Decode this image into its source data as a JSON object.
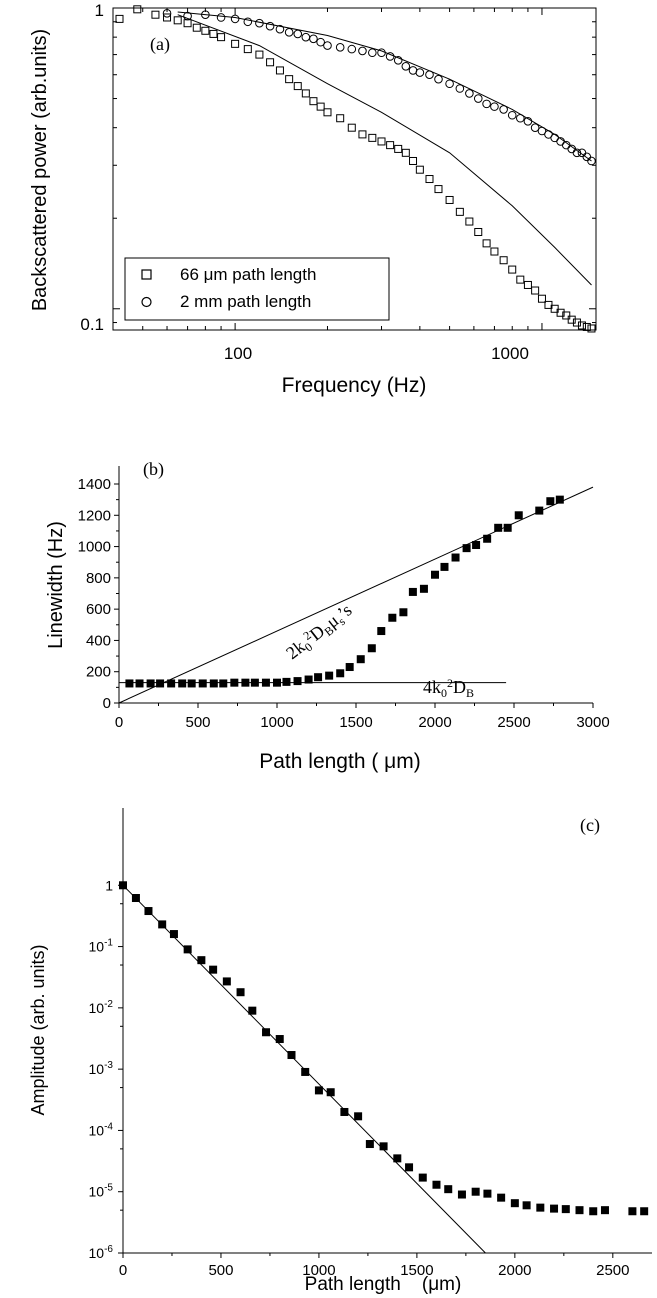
{
  "chart_data": [
    {
      "id": "a",
      "type": "scatter",
      "panel_label": "(a)",
      "xlabel": "Frequency (Hz)",
      "ylabel": "Backscattered power (arb.units)",
      "xscale": "log",
      "yscale": "log",
      "xlim": [
        40,
        1500
      ],
      "ylim": [
        0.085,
        1.0
      ],
      "x_tick_labels": [
        "100",
        "1000"
      ],
      "y_tick_labels": [
        "1",
        "0.1"
      ],
      "legend": {
        "placement": "bottom-left",
        "entries": [
          "66 μm path length",
          "2 mm path length"
        ]
      },
      "series": [
        {
          "name": "66 μm path length",
          "marker": "open-square",
          "x": [
            42,
            48,
            55,
            60,
            65,
            70,
            75,
            80,
            85,
            90,
            100,
            110,
            120,
            130,
            140,
            150,
            160,
            170,
            180,
            190,
            200,
            220,
            240,
            260,
            280,
            300,
            320,
            340,
            360,
            380,
            400,
            430,
            460,
            500,
            540,
            580,
            620,
            660,
            700,
            750,
            800,
            850,
            900,
            950,
            1000,
            1050,
            1100,
            1150,
            1200,
            1250,
            1300,
            1350,
            1400,
            1450
          ],
          "y": [
            0.92,
            0.99,
            0.95,
            0.93,
            0.91,
            0.89,
            0.86,
            0.84,
            0.82,
            0.8,
            0.76,
            0.73,
            0.7,
            0.66,
            0.62,
            0.58,
            0.55,
            0.52,
            0.49,
            0.47,
            0.45,
            0.43,
            0.4,
            0.38,
            0.37,
            0.36,
            0.35,
            0.34,
            0.33,
            0.31,
            0.29,
            0.27,
            0.25,
            0.23,
            0.21,
            0.195,
            0.18,
            0.165,
            0.155,
            0.145,
            0.135,
            0.125,
            0.12,
            0.115,
            0.108,
            0.103,
            0.1,
            0.097,
            0.095,
            0.092,
            0.09,
            0.088,
            0.087,
            0.086
          ]
        },
        {
          "name": "2 mm path length",
          "marker": "open-circle",
          "x": [
            60,
            70,
            80,
            90,
            100,
            110,
            120,
            130,
            140,
            150,
            160,
            170,
            180,
            190,
            200,
            220,
            240,
            260,
            280,
            300,
            320,
            340,
            360,
            380,
            400,
            430,
            460,
            500,
            540,
            580,
            620,
            660,
            700,
            750,
            800,
            850,
            900,
            950,
            1000,
            1050,
            1100,
            1150,
            1200,
            1250,
            1300,
            1350,
            1400,
            1450
          ],
          "y": [
            0.96,
            0.94,
            0.95,
            0.93,
            0.92,
            0.9,
            0.89,
            0.87,
            0.85,
            0.83,
            0.82,
            0.8,
            0.79,
            0.77,
            0.75,
            0.74,
            0.73,
            0.72,
            0.71,
            0.71,
            0.69,
            0.67,
            0.64,
            0.62,
            0.61,
            0.6,
            0.58,
            0.56,
            0.54,
            0.52,
            0.5,
            0.48,
            0.47,
            0.46,
            0.44,
            0.43,
            0.42,
            0.4,
            0.39,
            0.38,
            0.37,
            0.36,
            0.35,
            0.34,
            0.33,
            0.33,
            0.32,
            0.31
          ]
        }
      ],
      "fit_lines": [
        {
          "x": [
            65,
            120,
            200,
            300,
            500,
            800,
            1100,
            1450
          ],
          "y": [
            0.95,
            0.75,
            0.56,
            0.45,
            0.33,
            0.22,
            0.16,
            0.12
          ]
        },
        {
          "x": [
            65,
            100,
            200,
            300,
            500,
            800,
            1100,
            1450
          ],
          "y": [
            0.97,
            0.93,
            0.81,
            0.72,
            0.58,
            0.46,
            0.38,
            0.31
          ]
        }
      ]
    },
    {
      "id": "b",
      "type": "scatter",
      "panel_label": "(b)",
      "xlabel": "Path length ( μm)",
      "ylabel": "Linewidth (Hz)",
      "xlim": [
        0,
        3000
      ],
      "ylim": [
        0,
        1400
      ],
      "x_ticks": [
        0,
        500,
        1000,
        1500,
        2000,
        2500,
        3000
      ],
      "y_ticks": [
        0,
        200,
        400,
        600,
        800,
        1000,
        1200,
        1400
      ],
      "series": [
        {
          "marker": "filled-square",
          "x": [
            66,
            130,
            200,
            260,
            330,
            400,
            460,
            530,
            600,
            660,
            730,
            800,
            860,
            930,
            1000,
            1060,
            1130,
            1200,
            1260,
            1330,
            1400,
            1460,
            1530,
            1600,
            1660,
            1730,
            1800,
            1860,
            1930,
            2000,
            2060,
            2130,
            2200,
            2260,
            2330,
            2400,
            2460,
            2530,
            2660,
            2730,
            2790
          ],
          "y": [
            125,
            125,
            125,
            125,
            125,
            125,
            125,
            125,
            125,
            125,
            130,
            130,
            130,
            130,
            130,
            135,
            140,
            150,
            165,
            175,
            190,
            230,
            280,
            350,
            460,
            545,
            580,
            710,
            730,
            820,
            870,
            930,
            990,
            1010,
            1050,
            1120,
            1120,
            1200,
            1230,
            1290,
            1300
          ]
        }
      ],
      "lines": [
        {
          "label": "2k0²DBμ's",
          "x": [
            0,
            3000
          ],
          "y": [
            0,
            1380
          ]
        },
        {
          "label": "4k0²DB",
          "x": [
            0,
            2450
          ],
          "y": [
            130,
            130
          ]
        }
      ],
      "annotations": [
        "2k0²DBμ's",
        "4k0²DB"
      ]
    },
    {
      "id": "c",
      "type": "scatter",
      "panel_label": "(c)",
      "xlabel": "Path length    (μm)",
      "ylabel": "Amplitude (arb. units)",
      "yscale": "log",
      "xlim": [
        0,
        2700
      ],
      "ylim": [
        1e-06,
        10
      ],
      "x_ticks": [
        0,
        500,
        1000,
        1500,
        2000,
        2500
      ],
      "y_ticks": [
        1,
        -1,
        -2,
        -3,
        -4,
        -5,
        -6
      ],
      "series": [
        {
          "marker": "filled-square",
          "x": [
            0,
            66,
            130,
            200,
            260,
            330,
            400,
            460,
            530,
            600,
            660,
            730,
            800,
            860,
            930,
            1000,
            1060,
            1130,
            1200,
            1260,
            1330,
            1400,
            1460,
            1530,
            1600,
            1660,
            1730,
            1800,
            1860,
            1930,
            2000,
            2060,
            2130,
            2200,
            2260,
            2330,
            2400,
            2460,
            2600,
            2660
          ],
          "y": [
            1,
            0.62,
            0.38,
            0.23,
            0.16,
            0.09,
            0.06,
            0.042,
            0.027,
            0.018,
            0.009,
            0.004,
            0.0031,
            0.0017,
            0.0009,
            0.00045,
            0.00042,
            0.0002,
            0.00017,
            6e-05,
            5.5e-05,
            3.5e-05,
            2.5e-05,
            1.7e-05,
            1.3e-05,
            1.1e-05,
            9e-06,
            1e-05,
            9.3e-06,
            8e-06,
            6.5e-06,
            6e-06,
            5.5e-06,
            5.3e-06,
            5.2e-06,
            5e-06,
            4.8e-06,
            5e-06,
            4.8e-06,
            4.8e-06
          ]
        }
      ],
      "lines": [
        {
          "x": [
            0,
            1850
          ],
          "y": [
            1,
            1e-06
          ]
        }
      ]
    }
  ],
  "ticks": {
    "c_exp_label_base": "10",
    "c_exp_labels": [
      "-1",
      "-2",
      "-3",
      "-4",
      "-5",
      "-6"
    ],
    "c_one_label": "1"
  },
  "colors": {
    "ink": "#000000",
    "background": "#ffffff"
  }
}
